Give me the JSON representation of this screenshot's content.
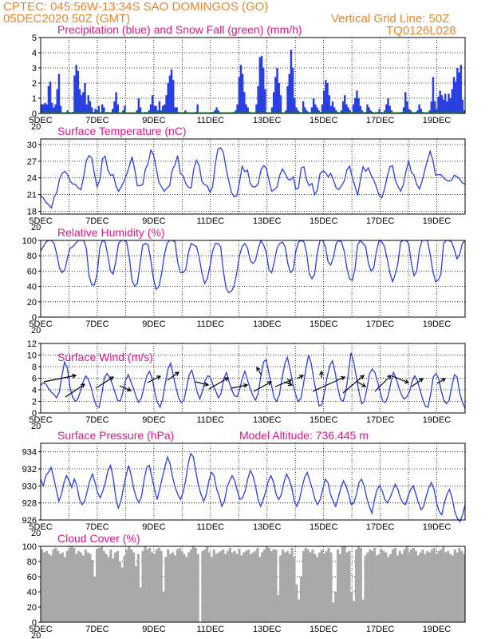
{
  "header": {
    "line1_left": "CPTEC:   045:56W-13:34S  SAO DOMINGOS (GO)",
    "line2_left": "05DEC2020 50Z (GMT)",
    "line1_right": "",
    "line2_right": "Vertical Grid Line: 50Z",
    "line3_right": "TQ0126L028"
  },
  "colors": {
    "header": "#e8862e",
    "title": "#e0148c",
    "line": "#2a3fe0",
    "cloud": "#a9a9a9",
    "snow": "#1aa31a"
  },
  "x_axis": {
    "labels": [
      "5DEC",
      "7DEC",
      "9DEC",
      "11DEC",
      "13DEC",
      "15DEC",
      "17DEC",
      "19DEC"
    ],
    "day_count": 15,
    "sub_label": "20"
  },
  "chart_data": [
    {
      "id": "precip",
      "type": "bar",
      "title": "Precipitation (blue) and Snow Fall (green) (mm/h)",
      "ylim": [
        0,
        5
      ],
      "yticks": [
        0,
        1,
        2,
        3,
        4,
        5
      ],
      "snow": 0,
      "values": [
        0.6,
        0.6,
        0.7,
        0.6,
        1.8,
        2.1,
        0.7,
        0.4,
        0.6,
        1.6,
        2.6,
        0.5,
        0,
        0,
        0,
        0.2,
        0,
        0,
        0.1,
        2.5,
        3.2,
        2.8,
        1.6,
        1.2,
        1.4,
        2.0,
        0.6,
        1.2,
        0.8,
        0.4,
        0.1,
        0.3,
        0.2,
        0.5,
        0,
        0.6,
        0.4,
        0,
        0.1,
        0,
        0,
        0.3,
        0.8,
        1.4,
        0.6,
        0,
        0,
        0.2,
        0.5,
        0,
        0,
        0,
        0,
        0,
        0,
        0.2,
        1.0,
        0.4,
        0,
        0,
        0.1,
        0,
        0.2,
        0.6,
        1.2,
        0.5,
        0.5,
        0.2,
        0.8,
        0.2,
        0.5,
        0.6,
        1.2,
        2.0,
        2.5,
        2.9,
        2.2,
        0.4,
        0.4,
        0.1,
        0,
        0,
        0,
        0.2,
        0,
        0,
        0,
        0,
        0,
        0.1,
        0.6,
        0,
        0,
        0,
        0,
        0,
        0,
        0,
        0,
        0.1,
        0.2,
        0.4,
        0.2,
        0,
        0,
        0,
        0,
        0,
        0,
        0,
        0,
        0.1,
        0.2,
        0.6,
        2.4,
        3.2,
        2.6,
        1.4,
        0.6,
        0.4,
        0.1,
        0,
        0,
        0,
        0.6,
        1.8,
        3.7,
        3.8,
        3.0,
        1.6,
        0,
        0,
        0,
        0.4,
        1.4,
        2.4,
        3.0,
        2.0,
        1.2,
        0,
        0,
        0.2,
        1.8,
        2.6,
        4.2,
        3.0,
        1.0,
        0.4,
        0.2,
        0.1,
        0,
        0.8,
        0.4,
        0.2,
        0.1,
        0,
        0.4,
        1.0,
        0.6,
        0.4,
        0.2,
        0.1,
        0.6,
        1.5,
        2.2,
        2.0,
        1.2,
        0.5,
        0.8,
        0.4,
        0.2,
        0.1,
        0,
        0.2,
        0.8,
        1.2,
        0.6,
        0.4,
        0.2,
        0,
        0.6,
        1.0,
        1.5,
        1.0,
        0.5,
        0.2,
        0,
        0.1,
        0.6,
        0.4,
        0.2,
        0.1,
        0,
        0,
        0.1,
        0.3,
        0.1,
        0,
        0.2,
        0.6,
        1.0,
        0.5,
        0.2,
        0,
        0,
        0,
        0,
        0,
        0.1,
        0.4,
        1.4,
        0.8,
        0.3,
        0.2,
        0.1,
        0,
        0.1,
        0.2,
        0.6,
        0.3,
        0.1,
        0,
        0,
        0,
        0.2,
        0.8,
        2.4,
        0.8,
        0.3,
        1.1,
        1.5,
        1.2,
        0.9,
        1.3,
        0.8,
        1.3,
        1.0,
        1.6,
        2.4,
        2.1,
        3.0,
        2.7,
        3.2,
        0.9,
        0.2
      ]
    },
    {
      "id": "temp",
      "type": "line",
      "title": "Surface Temperature (nC)",
      "ylim": [
        17.5,
        31
      ],
      "yticks": [
        18,
        21,
        24,
        27,
        30
      ],
      "values": [
        20.8,
        20.4,
        19.6,
        19.2,
        18.6,
        20.5,
        21.4,
        23.8,
        24.8,
        25.2,
        24.6,
        23.4,
        22.9,
        22.8,
        22.2,
        21.9,
        24.2,
        27.1,
        28.0,
        27.6,
        24.8,
        22.4,
        23.6,
        27.4,
        27.9,
        25.4,
        24.5,
        24.6,
        22.6,
        21.6,
        22.4,
        23.4,
        24.6,
        26.1,
        27.8,
        25.6,
        22.6,
        22.6,
        22.8,
        25.6,
        26.6,
        29.0,
        28.2,
        25.8,
        23.2,
        22.4,
        21.6,
        22.2,
        22.6,
        25.4,
        26.4,
        28.0,
        24.8,
        24.4,
        23.0,
        22.3,
        22.2,
        25.6,
        27.2,
        26.2,
        23.4,
        22.8,
        22.6,
        21.4,
        22.4,
        26.5,
        29.2,
        29.4,
        28.6,
        25.8,
        23.5,
        21.4,
        20.6,
        20.8,
        23.2,
        26.1,
        25.1,
        25.4,
        23.0,
        22.4,
        22.4,
        23.0,
        25.4,
        26.2,
        25.8,
        23.5,
        21.6,
        21.9,
        22.4,
        24.5,
        25.6,
        24.8,
        23.8,
        23.6,
        24.2,
        22.0,
        22.2,
        25.8,
        26.0,
        23.6,
        22.6,
        23.0,
        21.0,
        21.8,
        24.8,
        25.2,
        25.0,
        24.2,
        24.8,
        23.6,
        22.2,
        21.9,
        22.6,
        23.4,
        25.4,
        26.1,
        24.1,
        22.6,
        20.8,
        23.6,
        26.0,
        25.2,
        25.8,
        24.5,
        23.6,
        22.4,
        20.8,
        20.4,
        22.0,
        24.2,
        26.0,
        26.2,
        23.6,
        22.5,
        21.6,
        22.8,
        25.2,
        27.0,
        25.0,
        24.5,
        22.8,
        22.0,
        23.4,
        25.4,
        27.2,
        28.8,
        27.2,
        24.5,
        24.6,
        24.6,
        24.0,
        23.6,
        23.4,
        23.6,
        24.5,
        24.2,
        23.8,
        23.1,
        22.9
      ]
    },
    {
      "id": "rh",
      "type": "line",
      "title": "Relative Humidity (%)",
      "ylim": [
        0,
        100
      ],
      "yticks": [
        0,
        20,
        40,
        60,
        80,
        100
      ],
      "values": [
        86,
        92,
        98,
        100,
        100,
        96,
        82,
        64,
        58,
        62,
        78,
        90,
        92,
        96,
        100,
        100,
        100,
        90,
        54,
        42,
        42,
        56,
        90,
        100,
        98,
        80,
        60,
        56,
        74,
        96,
        100,
        100,
        98,
        78,
        48,
        40,
        44,
        70,
        94,
        96,
        94,
        74,
        50,
        36,
        40,
        56,
        80,
        96,
        100,
        100,
        98,
        72,
        58,
        58,
        62,
        84,
        96,
        94,
        92,
        78,
        58,
        44,
        50,
        66,
        86,
        96,
        96,
        92,
        60,
        38,
        32,
        34,
        40,
        58,
        80,
        92,
        96,
        90,
        74,
        70,
        74,
        90,
        100,
        94,
        84,
        62,
        58,
        72,
        90,
        96,
        98,
        92,
        70,
        58,
        62,
        86,
        98,
        100,
        98,
        84,
        56,
        50,
        56,
        84,
        100,
        100,
        92,
        72,
        68,
        78,
        96,
        100,
        98,
        86,
        64,
        50,
        48,
        62,
        94,
        100,
        96,
        92,
        70,
        60,
        64,
        86,
        100,
        98,
        92,
        76,
        58,
        46,
        56,
        70,
        98,
        100,
        100,
        96,
        70,
        54,
        60,
        88,
        100,
        100,
        100,
        82,
        60,
        46,
        48,
        56,
        96,
        100,
        100,
        98,
        88,
        76,
        82,
        96,
        100
      ]
    },
    {
      "id": "wind",
      "type": "line",
      "title": "Surface Wind (m/s)",
      "ylim": [
        0,
        12
      ],
      "yticks": [
        0,
        2,
        4,
        6,
        8,
        10,
        12
      ],
      "values": [
        4.8,
        5.2,
        5.0,
        4.2,
        3.6,
        3.2,
        2.6,
        3.6,
        6.4,
        8.8,
        7.8,
        4.6,
        2.8,
        2.0,
        2.4,
        3.8,
        5.4,
        6.4,
        5.8,
        4.4,
        2.6,
        1.2,
        1.0,
        3.2,
        6.0,
        6.8,
        6.2,
        5.0,
        3.6,
        2.2,
        2.0,
        3.6,
        5.6,
        6.6,
        5.4,
        4.2,
        2.8,
        1.8,
        2.6,
        4.6,
        6.4,
        7.2,
        6.0,
        3.6,
        1.8,
        1.0,
        2.4,
        5.2,
        7.6,
        8.6,
        6.4,
        4.4,
        2.6,
        1.8,
        2.2,
        4.4,
        6.6,
        7.4,
        5.6,
        3.6,
        2.4,
        3.8,
        5.6,
        6.4,
        6.2,
        4.8,
        3.8,
        2.6,
        3.4,
        5.8,
        7.0,
        5.4,
        4.0,
        3.0,
        2.8,
        4.0,
        6.0,
        7.2,
        5.6,
        4.2,
        3.0,
        2.2,
        3.4,
        6.4,
        8.8,
        9.2,
        7.0,
        4.8,
        2.6,
        2.0,
        3.2,
        6.0,
        8.4,
        9.6,
        7.6,
        5.2,
        3.4,
        2.0,
        2.4,
        4.8,
        7.6,
        10.0,
        8.6,
        5.6,
        3.4,
        1.2,
        1.4,
        3.6,
        6.2,
        8.2,
        9.0,
        7.0,
        4.4,
        2.4,
        2.0,
        3.6,
        6.8,
        10.4,
        8.8,
        6.2,
        3.6,
        1.6,
        2.0,
        4.2,
        6.8,
        7.6,
        7.0,
        5.4,
        3.6,
        2.0,
        1.8,
        3.0,
        5.2,
        7.0,
        6.0,
        4.4,
        3.2,
        2.4,
        2.8,
        3.6,
        5.4,
        6.4,
        5.6,
        4.0,
        2.4,
        1.2,
        1.0,
        3.2,
        6.2,
        6.8,
        6.0,
        3.8,
        2.2,
        1.6,
        2.2,
        4.6,
        6.6,
        6.2,
        3.4,
        1.8,
        0.8
      ]
    },
    {
      "id": "pressure",
      "type": "line",
      "title": "Surface Pressure (hPa)",
      "annotation": "Model Altitude: 736.445  m",
      "ylim": [
        926,
        935
      ],
      "yticks": [
        926,
        928,
        930,
        932,
        934
      ],
      "values": [
        930.8,
        930.0,
        931.2,
        931.6,
        932.2,
        931.0,
        929.6,
        928.2,
        929.0,
        930.4,
        931.2,
        930.6,
        929.8,
        930.8,
        930.0,
        928.4,
        927.8,
        928.2,
        929.4,
        930.6,
        931.4,
        930.4,
        929.2,
        928.6,
        929.4,
        930.4,
        931.8,
        932.4,
        931.0,
        928.6,
        927.4,
        928.2,
        929.8,
        931.2,
        932.4,
        931.2,
        929.6,
        928.6,
        928.0,
        928.8,
        930.8,
        932.2,
        932.4,
        931.0,
        929.6,
        928.4,
        929.6,
        931.0,
        932.2,
        933.4,
        932.6,
        931.0,
        929.8,
        929.0,
        928.4,
        929.2,
        930.6,
        932.6,
        933.8,
        933.4,
        931.6,
        930.0,
        929.0,
        928.2,
        929.0,
        930.6,
        931.6,
        931.2,
        929.6,
        928.8,
        927.6,
        928.2,
        929.8,
        930.6,
        931.2,
        930.6,
        929.4,
        928.4,
        928.6,
        929.4,
        930.8,
        931.8,
        931.2,
        930.0,
        928.4,
        927.6,
        928.4,
        929.4,
        930.6,
        931.2,
        930.4,
        929.0,
        928.4,
        929.0,
        930.4,
        931.4,
        930.8,
        929.8,
        928.2,
        927.6,
        928.4,
        929.8,
        931.0,
        931.6,
        930.6,
        929.6,
        928.4,
        927.8,
        928.4,
        929.6,
        930.8,
        930.4,
        929.0,
        928.2,
        927.6,
        928.6,
        929.8,
        930.6,
        930.0,
        929.0,
        927.8,
        928.0,
        929.0,
        930.4,
        930.8,
        930.0,
        928.6,
        927.6,
        926.8,
        928.4,
        929.6,
        930.0,
        929.4,
        928.4,
        928.0,
        928.6,
        929.4,
        930.2,
        929.6,
        928.6,
        928.0,
        927.8,
        928.8,
        929.6,
        930.0,
        929.0,
        928.0,
        927.2,
        927.6,
        928.8,
        929.8,
        930.4,
        929.6,
        928.0,
        927.0,
        926.6,
        928.0,
        929.0,
        929.6,
        928.6,
        927.0,
        926.2,
        925.8,
        926.6,
        927.8
      ]
    },
    {
      "id": "cloud",
      "type": "bar",
      "title": "Cloud Cover (%)",
      "ylim": [
        0,
        100
      ],
      "yticks": [
        0,
        20,
        40,
        60,
        80,
        100
      ],
      "values": [
        96,
        92,
        94,
        90,
        88,
        96,
        98,
        94,
        90,
        92,
        86,
        94,
        98,
        100,
        98,
        90,
        94,
        92,
        88,
        96,
        92,
        90,
        82,
        60,
        96,
        98,
        100,
        94,
        90,
        86,
        96,
        84,
        92,
        94,
        80,
        72,
        88,
        96,
        100,
        96,
        92,
        74,
        90,
        46,
        94,
        100,
        96,
        98,
        92,
        90,
        96,
        98,
        94,
        40,
        86,
        96,
        90,
        92,
        88,
        96,
        98,
        94,
        90,
        86,
        92,
        96,
        100,
        98,
        90,
        0,
        94,
        96,
        100,
        92,
        86,
        96,
        90,
        92,
        94,
        96,
        90,
        94,
        98,
        92,
        94,
        90,
        96,
        88,
        92,
        94,
        96,
        90,
        92,
        94,
        98,
        86,
        92,
        96,
        100,
        98,
        94,
        96,
        96,
        36,
        88,
        96,
        92,
        94,
        90,
        98,
        86,
        50,
        30,
        60,
        94,
        98,
        96,
        92,
        96,
        90,
        86,
        92,
        96,
        90,
        94,
        98,
        92,
        26,
        40,
        96,
        90,
        100,
        100,
        92,
        94,
        40,
        28,
        96,
        100,
        98,
        30,
        88,
        92,
        96,
        94,
        98,
        88,
        90,
        96,
        94,
        92,
        86,
        90,
        96,
        98,
        88,
        94,
        90,
        96,
        100,
        92,
        96,
        98,
        94,
        88,
        92,
        96,
        90,
        94,
        92,
        96,
        98,
        90,
        94,
        96,
        100,
        92,
        94,
        90,
        88,
        96,
        92,
        98,
        94,
        90
      ]
    }
  ]
}
